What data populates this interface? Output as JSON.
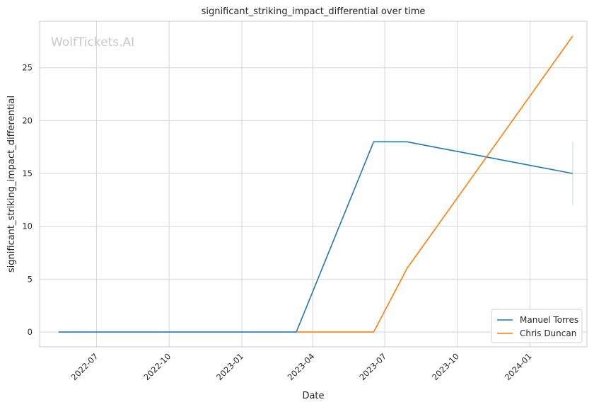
{
  "chart_data": {
    "type": "line",
    "title": "significant_striking_impact_differential over time",
    "xlabel": "Date",
    "ylabel": "significant_striking_impact_differential",
    "watermark": "WolfTickets.AI",
    "x_ticks": [
      "2022-07",
      "2022-10",
      "2023-01",
      "2023-04",
      "2023-07",
      "2023-10",
      "2024-01"
    ],
    "y_ticks": [
      0,
      5,
      10,
      15,
      20,
      25
    ],
    "xlim": [
      "2022-04-20",
      "2024-03-13"
    ],
    "ylim": [
      -1.4,
      29.4
    ],
    "grid": true,
    "legend_position": "bottom-right",
    "series": [
      {
        "name": "Manuel Torres",
        "color": "#1f77b4",
        "points": [
          {
            "x": "2022-05-14",
            "y": 0
          },
          {
            "x": "2023-03-11",
            "y": 0
          },
          {
            "x": "2023-06-17",
            "y": 18
          },
          {
            "x": "2023-07-29",
            "y": 18
          },
          {
            "x": "2024-02-24",
            "y": 15
          }
        ]
      },
      {
        "name": "Chris Duncan",
        "color": "#ff7f0e",
        "points": [
          {
            "x": "2023-03-11",
            "y": 0
          },
          {
            "x": "2023-06-17",
            "y": 0
          },
          {
            "x": "2023-07-29",
            "y": 6
          },
          {
            "x": "2024-02-24",
            "y": 28
          }
        ]
      }
    ],
    "annotations": [
      {
        "type": "vertical-range",
        "x": "2024-02-24",
        "y_from": 12,
        "y_to": 18,
        "color": "#b9e0d6"
      }
    ]
  }
}
